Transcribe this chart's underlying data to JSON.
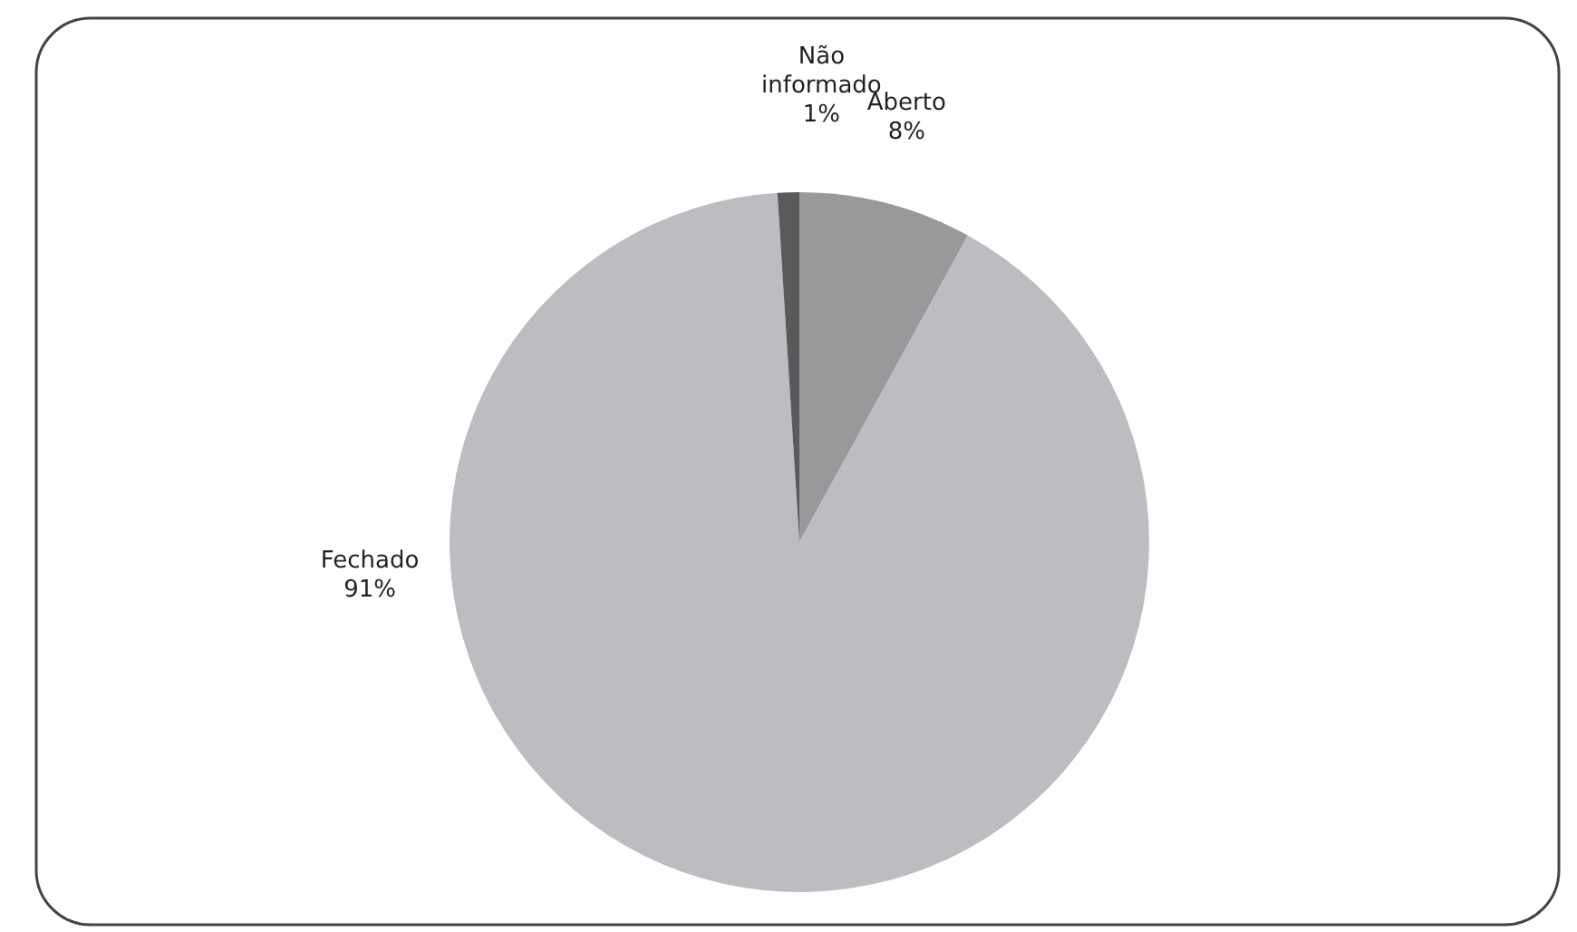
{
  "chart_data": {
    "type": "pie",
    "categories": [
      "Aberto",
      "Fechado",
      "Não informado"
    ],
    "values": [
      8,
      91,
      1
    ],
    "colors": [
      "#98999b",
      "#bcbdc0",
      "#5a5a5c"
    ],
    "value_labels": [
      "8%",
      "91%",
      "1%"
    ]
  }
}
